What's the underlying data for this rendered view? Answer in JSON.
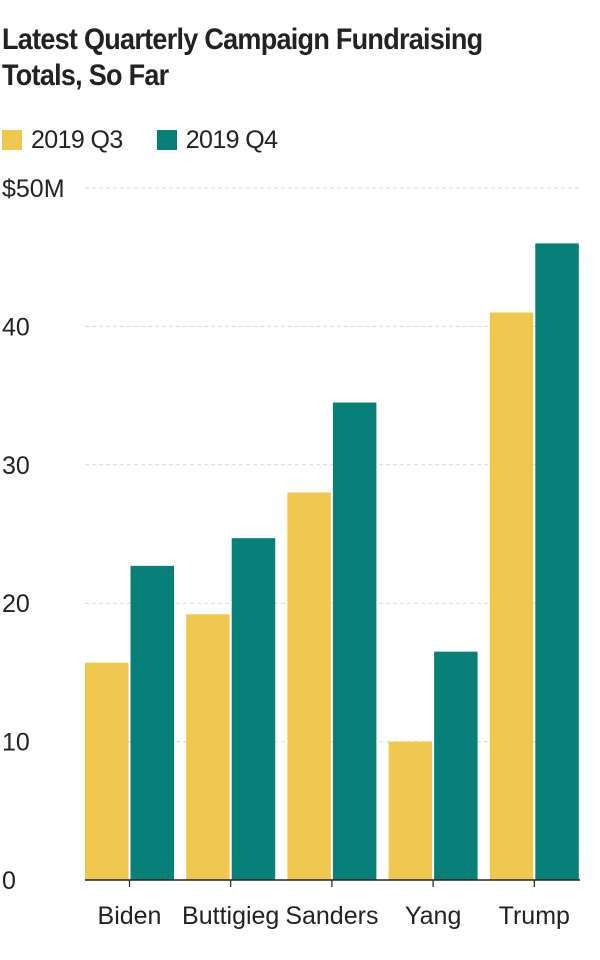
{
  "chart_data": {
    "type": "bar",
    "title": "Latest Quarterly Campaign Fundraising Totals, So Far",
    "categories": [
      "Biden",
      "Buttigieg",
      "Sanders",
      "Yang",
      "Trump"
    ],
    "series": [
      {
        "name": "2019 Q3",
        "color": "#f0c84f",
        "values": [
          15.7,
          19.2,
          28.0,
          10.0,
          41.0
        ]
      },
      {
        "name": "2019 Q4",
        "color": "#07807a",
        "values": [
          22.7,
          24.7,
          34.5,
          16.5,
          46.0
        ]
      }
    ],
    "ylim": [
      0,
      50
    ],
    "yticks": [
      0,
      10,
      20,
      30,
      40,
      50
    ],
    "ytick_labels": [
      "0",
      "10",
      "20",
      "30",
      "40",
      "$50M"
    ],
    "xlabel": "",
    "ylabel": "",
    "grid": true,
    "legend": "top-left"
  }
}
